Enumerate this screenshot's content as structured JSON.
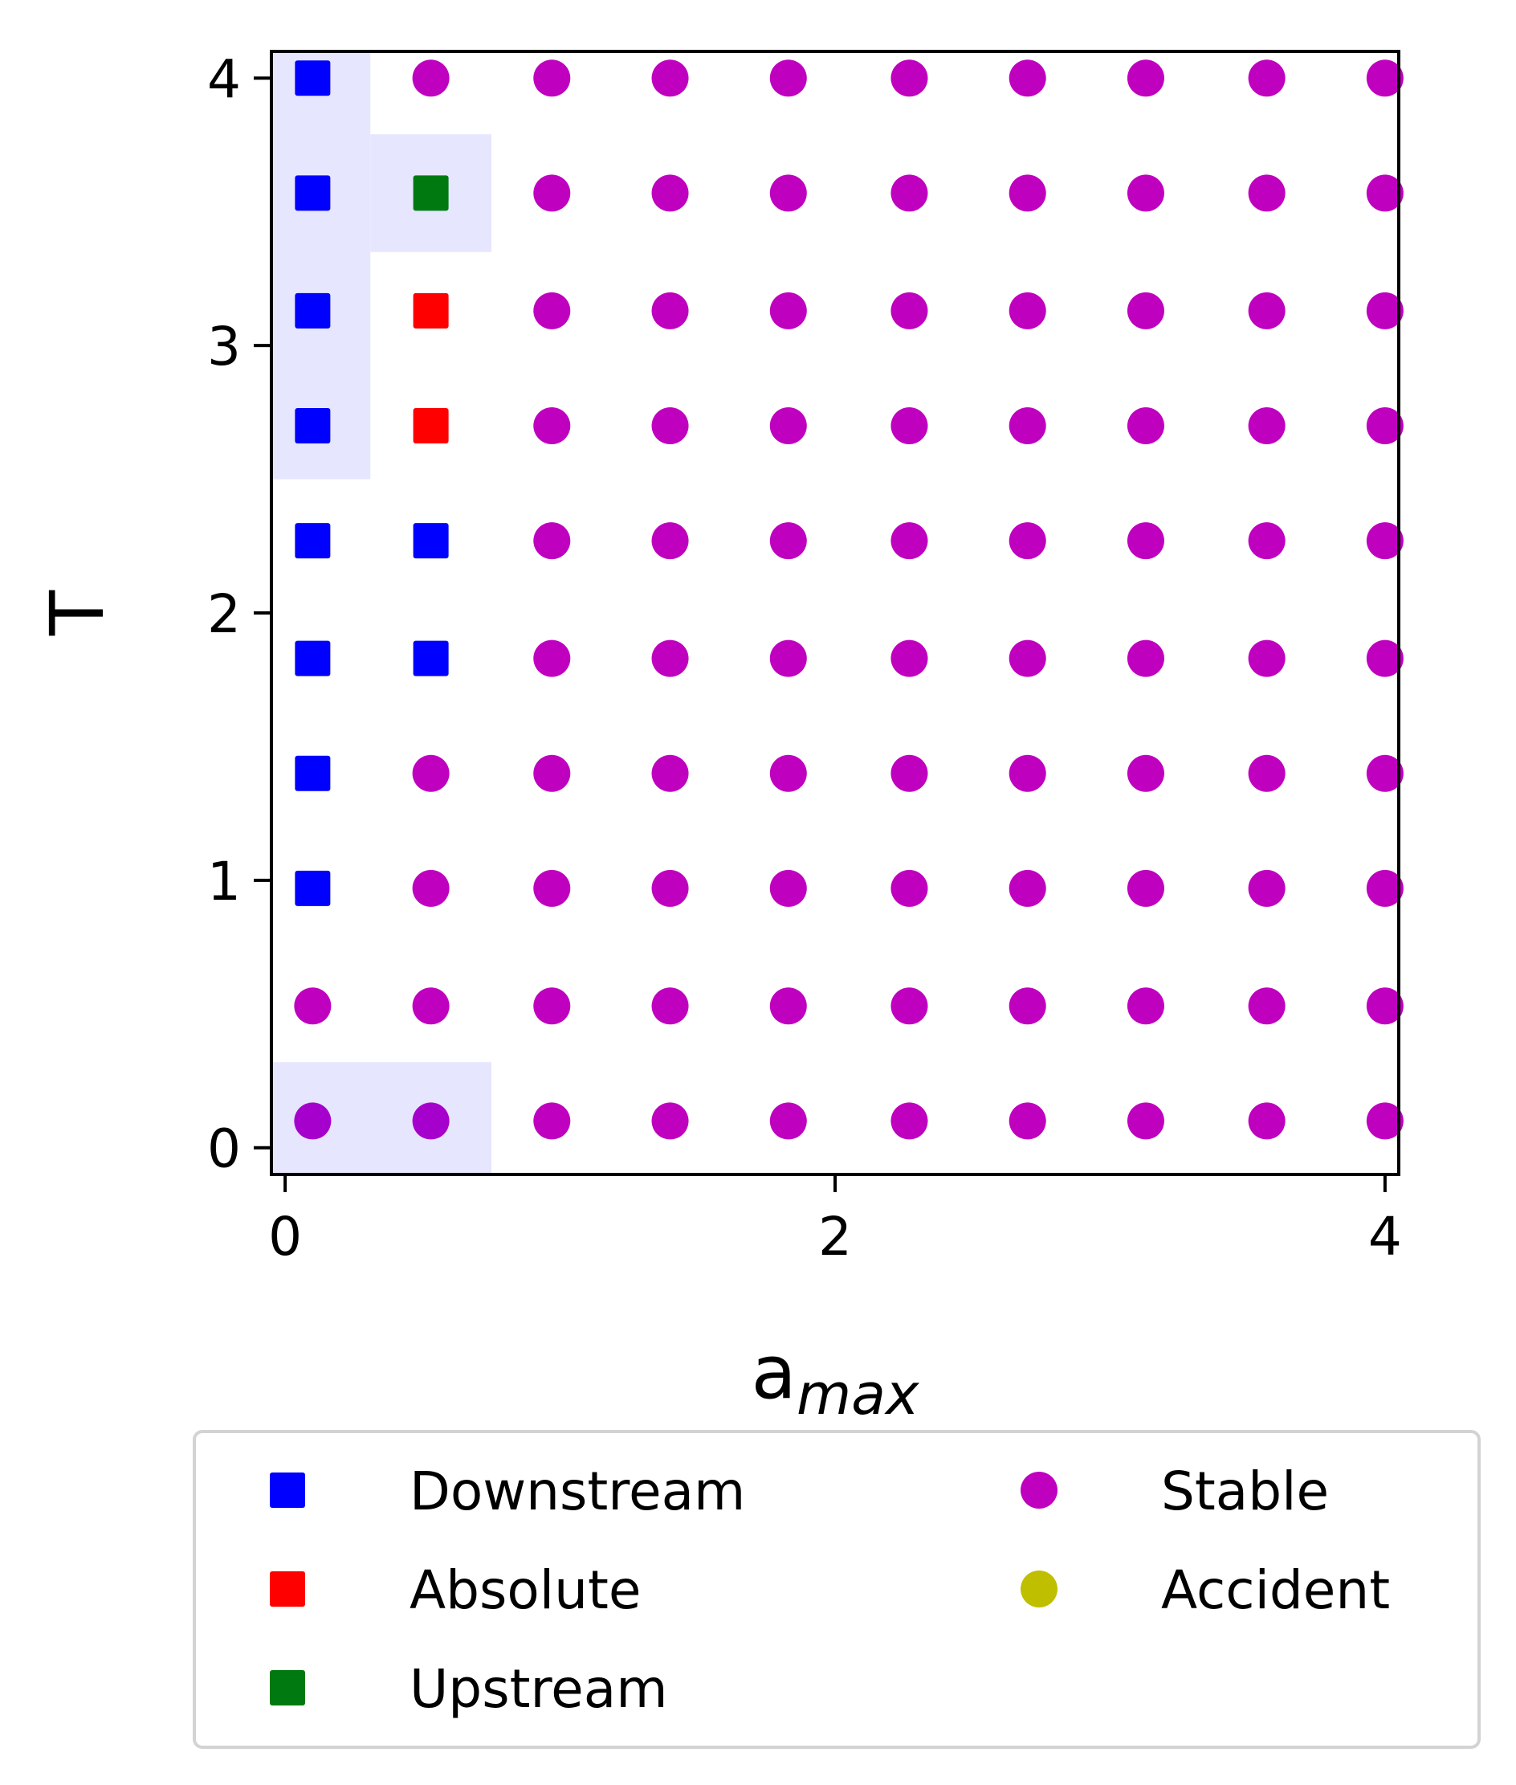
{
  "chart_data": {
    "type": "scatter",
    "title": "",
    "xlabel_main": "a",
    "xlabel_sub": "max",
    "ylabel": "T",
    "xlim": [
      -0.05,
      4.05
    ],
    "ylim": [
      -0.1,
      4.1
    ],
    "xticks": [
      "0",
      "2",
      "4"
    ],
    "yticks": [
      "0",
      "1",
      "2",
      "3",
      "4"
    ],
    "grid": false,
    "legend_placement": "bottom, below axes",
    "grid_x": [
      0.1,
      0.53,
      0.97,
      1.4,
      1.83,
      2.27,
      2.7,
      3.13,
      3.57,
      4.0
    ],
    "grid_y": [
      0.1,
      0.53,
      0.97,
      1.4,
      1.83,
      2.27,
      2.7,
      3.13,
      3.57,
      4.0
    ],
    "series": [
      {
        "name": "Downstream",
        "marker": "square",
        "color": "#0000ff",
        "points": [
          [
            0.1,
            0.97
          ],
          [
            0.1,
            1.4
          ],
          [
            0.1,
            1.83
          ],
          [
            0.1,
            2.27
          ],
          [
            0.1,
            2.7
          ],
          [
            0.1,
            3.13
          ],
          [
            0.1,
            3.57
          ],
          [
            0.1,
            4.0
          ],
          [
            0.53,
            1.83
          ],
          [
            0.53,
            2.27
          ]
        ]
      },
      {
        "name": "Absolute",
        "marker": "square",
        "color": "#ff0000",
        "points": [
          [
            0.53,
            2.7
          ],
          [
            0.53,
            3.13
          ]
        ]
      },
      {
        "name": "Upstream",
        "marker": "square",
        "color": "#007a10",
        "points": [
          [
            0.53,
            3.57
          ]
        ]
      },
      {
        "name": "Stable",
        "marker": "circle",
        "color": "#bf00bf",
        "fill": "rest_of_grid"
      },
      {
        "name": "Accident",
        "marker": "circle",
        "color": "#bfbf00",
        "points": []
      }
    ],
    "shaded_regions": [
      {
        "color": "#e6e6ff",
        "xrange": [
          -0.05,
          0.31
        ],
        "yrange": [
          2.5,
          4.1
        ]
      },
      {
        "color": "#e6e6ff",
        "xrange": [
          0.31,
          0.75
        ],
        "yrange": [
          3.35,
          3.79
        ]
      },
      {
        "color": "#e6e6ff",
        "xrange": [
          -0.05,
          0.75
        ],
        "yrange": [
          -0.1,
          0.32
        ]
      }
    ],
    "overlay_circles": [
      {
        "color": "#a600cc",
        "points": [
          [
            0.1,
            0.1
          ],
          [
            0.53,
            0.1
          ]
        ]
      }
    ]
  }
}
